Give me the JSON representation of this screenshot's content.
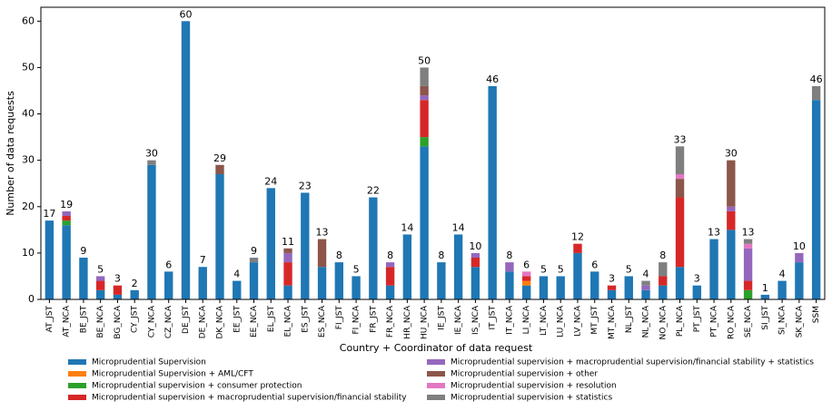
{
  "chart_data": {
    "type": "bar",
    "stacked": true,
    "xlabel": "Country + Coordinator of data request",
    "ylabel": "Number of data requests",
    "categories": [
      "AT_JST",
      "AT_NCA",
      "BE_JST",
      "BE_NCA",
      "BG_NCA",
      "CY_JST",
      "CY_NCA",
      "CZ_NCA",
      "DE_JST",
      "DE_NCA",
      "DK_NCA",
      "EE_JST",
      "EE_NCA",
      "EL_JST",
      "EL_NCA",
      "ES_JST",
      "ES_NCA",
      "FI_JST",
      "FI_NCA",
      "FR_JST",
      "FR_NCA",
      "HR_NCA",
      "HU_NCA",
      "IE_JST",
      "IE_NCA",
      "IS_NCA",
      "IT_JST",
      "IT_NCA",
      "LI_NCA",
      "LT_NCA",
      "LU_NCA",
      "LV_NCA",
      "MT_JST",
      "MT_NCA",
      "NL_JST",
      "NL_NCA",
      "NO_NCA",
      "PL_NCA",
      "PT_JST",
      "PT_NCA",
      "RO_NCA",
      "SE_NCA",
      "SI_JST",
      "SI_NCA",
      "SK_NCA",
      "SSM"
    ],
    "totals": [
      17,
      19,
      9,
      5,
      3,
      2,
      30,
      6,
      60,
      7,
      29,
      4,
      9,
      24,
      11,
      23,
      13,
      8,
      5,
      22,
      8,
      14,
      50,
      8,
      14,
      10,
      46,
      8,
      6,
      5,
      5,
      12,
      6,
      3,
      5,
      4,
      8,
      33,
      3,
      13,
      30,
      13,
      1,
      4,
      10,
      46
    ],
    "series": [
      {
        "name": "Microprudential Supervision",
        "color": "#1f77b4",
        "values": [
          17,
          16,
          9,
          2,
          1,
          2,
          29,
          6,
          60,
          7,
          27,
          4,
          8,
          24,
          3,
          23,
          7,
          8,
          5,
          22,
          3,
          14,
          33,
          8,
          14,
          7,
          46,
          6,
          3,
          5,
          5,
          10,
          6,
          2,
          5,
          2,
          3,
          7,
          3,
          13,
          15,
          0,
          1,
          4,
          8,
          43
        ]
      },
      {
        "name": "Microprudential Supervision + AML/CFT",
        "color": "#ff7f0e",
        "values": [
          0,
          0,
          0,
          0,
          0,
          0,
          0,
          0,
          0,
          0,
          0,
          0,
          0,
          0,
          0,
          0,
          0,
          0,
          0,
          0,
          0,
          0,
          0,
          0,
          0,
          0,
          0,
          0,
          1,
          0,
          0,
          0,
          0,
          0,
          0,
          0,
          0,
          0,
          0,
          0,
          0,
          0,
          0,
          0,
          0,
          0
        ]
      },
      {
        "name": "Microprudential supervision + consumer protection",
        "color": "#2ca02c",
        "values": [
          0,
          1,
          0,
          0,
          0,
          0,
          0,
          0,
          0,
          0,
          0,
          0,
          0,
          0,
          0,
          0,
          0,
          0,
          0,
          0,
          0,
          0,
          2,
          0,
          0,
          0,
          0,
          0,
          0,
          0,
          0,
          0,
          0,
          0,
          0,
          0,
          0,
          0,
          0,
          0,
          0,
          2,
          0,
          0,
          0,
          0
        ]
      },
      {
        "name": "Microprudential supervision + macroprudential supervision/financial stability",
        "color": "#d62728",
        "values": [
          0,
          1,
          0,
          2,
          2,
          0,
          0,
          0,
          0,
          0,
          0,
          0,
          0,
          0,
          5,
          0,
          0,
          0,
          0,
          0,
          4,
          0,
          8,
          0,
          0,
          2,
          0,
          0,
          1,
          0,
          0,
          2,
          0,
          1,
          0,
          0,
          2,
          15,
          0,
          0,
          4,
          2,
          0,
          0,
          0,
          0
        ]
      },
      {
        "name": "Microprudential supervision + macroprudential supervision/financial stability + statistics",
        "color": "#9467bd",
        "values": [
          0,
          1,
          0,
          1,
          0,
          0,
          0,
          0,
          0,
          0,
          0,
          0,
          0,
          0,
          2,
          0,
          0,
          0,
          0,
          0,
          1,
          0,
          1,
          0,
          0,
          1,
          0,
          2,
          0,
          0,
          0,
          0,
          0,
          0,
          0,
          1,
          0,
          0,
          0,
          0,
          1,
          7,
          0,
          0,
          2,
          0
        ]
      },
      {
        "name": "Microprudential supervision + other",
        "color": "#8c564b",
        "values": [
          0,
          0,
          0,
          0,
          0,
          0,
          0,
          0,
          0,
          0,
          2,
          0,
          0,
          0,
          1,
          0,
          6,
          0,
          0,
          0,
          0,
          0,
          2,
          0,
          0,
          0,
          0,
          0,
          0,
          0,
          0,
          0,
          0,
          0,
          0,
          0,
          0,
          4,
          0,
          0,
          10,
          0,
          0,
          0,
          0,
          0
        ]
      },
      {
        "name": "Microprudential supervision + resolution",
        "color": "#e377c2",
        "values": [
          0,
          0,
          0,
          0,
          0,
          0,
          0,
          0,
          0,
          0,
          0,
          0,
          0,
          0,
          0,
          0,
          0,
          0,
          0,
          0,
          0,
          0,
          0,
          0,
          0,
          0,
          0,
          0,
          1,
          0,
          0,
          0,
          0,
          0,
          0,
          0,
          0,
          1,
          0,
          0,
          0,
          1,
          0,
          0,
          0,
          0
        ]
      },
      {
        "name": "Microprudential supervision + statistics",
        "color": "#7f7f7f",
        "values": [
          0,
          0,
          0,
          0,
          0,
          0,
          1,
          0,
          0,
          0,
          0,
          0,
          1,
          0,
          0,
          0,
          0,
          0,
          0,
          0,
          0,
          0,
          4,
          0,
          0,
          0,
          0,
          0,
          0,
          0,
          0,
          0,
          0,
          0,
          0,
          1,
          3,
          6,
          0,
          0,
          0,
          1,
          0,
          0,
          0,
          3
        ]
      }
    ],
    "ylim": [
      0,
      63
    ],
    "yticks": [
      0,
      10,
      20,
      30,
      40,
      50,
      60
    ]
  }
}
